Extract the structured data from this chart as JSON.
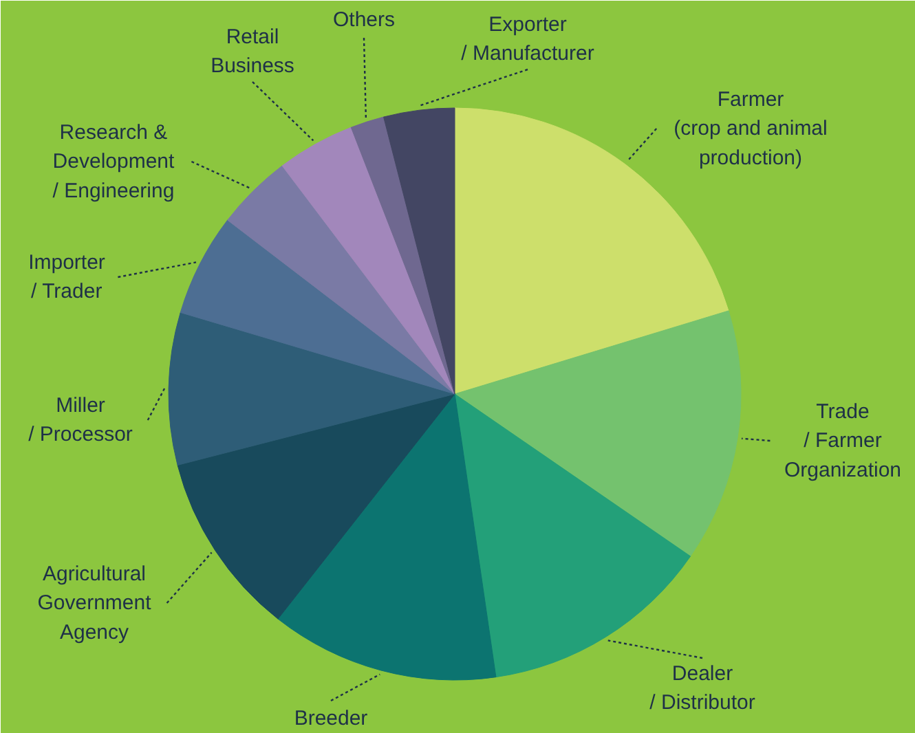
{
  "chart_data": {
    "type": "pie",
    "categories": [
      "Farmer\n(crop and animal\nproduction)",
      "Trade\n/ Farmer\nOrganization",
      "Dealer\n/ Distributor",
      "Breeder",
      "Agricultural\nGovernment\nAgency",
      "Miller\n/ Processor",
      "Importer\n/ Trader",
      "Research &\nDevelopment\n/ Engineering",
      "Retail\nBusiness",
      "Others",
      "Exporter\n/ Manufacturer"
    ],
    "values": [
      20.3,
      14.3,
      13.1,
      12.9,
      10.4,
      8.6,
      5.8,
      4.3,
      4.4,
      1.9,
      4.0
    ],
    "colors": [
      "#cddf6b",
      "#74c26e",
      "#23a079",
      "#0c7470",
      "#184a5c",
      "#2e5d77",
      "#4d6e93",
      "#7a7aa5",
      "#a287bb",
      "#6f6890",
      "#434663"
    ]
  }
}
